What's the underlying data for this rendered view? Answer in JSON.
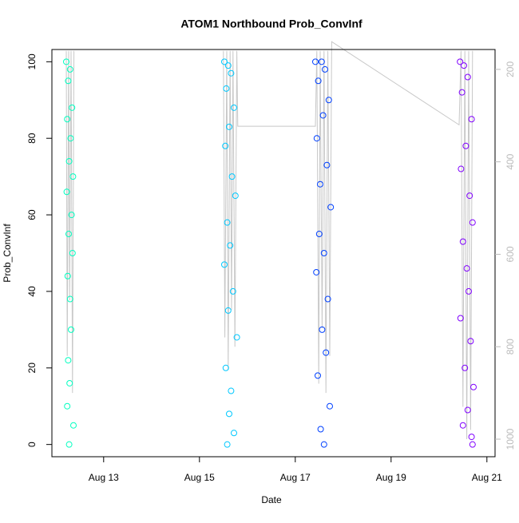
{
  "chart_data": {
    "type": "scatter",
    "title": "ATOM1 Northbound Prob_ConvInf",
    "x_label": "Date",
    "y_label": "Prob_ConvInf",
    "xlim": [
      11.92,
      21.17
    ],
    "xticks": [
      {
        "value": 13,
        "label": "Aug 13"
      },
      {
        "value": 15,
        "label": "Aug 15"
      },
      {
        "value": 17,
        "label": "Aug 17"
      },
      {
        "value": 19,
        "label": "Aug 19"
      },
      {
        "value": 21,
        "label": "Aug 21"
      }
    ],
    "ylim": [
      -3.2,
      103.2
    ],
    "yticks": [
      0,
      20,
      40,
      60,
      80,
      100
    ],
    "y2lim": [
      1038,
      157
    ],
    "y2ticks": [
      200,
      400,
      600,
      800,
      1000
    ],
    "series": [
      {
        "color": "#00ffc0",
        "x": [
          12.22,
          12.3,
          12.26,
          12.34,
          12.24,
          12.31,
          12.28,
          12.36,
          12.23,
          12.33,
          12.27,
          12.35,
          12.25,
          12.3,
          12.32,
          12.26,
          12.29,
          12.24,
          12.37,
          12.28
        ],
        "values": [
          100,
          98,
          95,
          88,
          85,
          80,
          74,
          70,
          66,
          60,
          55,
          50,
          44,
          38,
          30,
          22,
          16,
          10,
          5,
          0
        ]
      },
      {
        "color": "#00c8ff",
        "x": [
          15.52,
          15.6,
          15.66,
          15.56,
          15.72,
          15.62,
          15.54,
          15.68,
          15.75,
          15.58,
          15.64,
          15.52,
          15.7,
          15.6,
          15.78,
          15.55,
          15.66,
          15.62,
          15.72,
          15.58
        ],
        "values": [
          100,
          99,
          97,
          93,
          88,
          83,
          78,
          70,
          65,
          58,
          52,
          47,
          40,
          35,
          28,
          20,
          14,
          8,
          3,
          0
        ]
      },
      {
        "color": "#0040ff",
        "x": [
          17.42,
          17.55,
          17.62,
          17.48,
          17.7,
          17.58,
          17.45,
          17.66,
          17.52,
          17.74,
          17.5,
          17.6,
          17.44,
          17.68,
          17.56,
          17.64,
          17.47,
          17.72,
          17.53,
          17.6
        ],
        "values": [
          100,
          100,
          98,
          95,
          90,
          86,
          80,
          73,
          68,
          62,
          55,
          50,
          45,
          38,
          30,
          24,
          18,
          10,
          4,
          0
        ]
      },
      {
        "color": "#8000ff",
        "x": [
          20.44,
          20.52,
          20.6,
          20.48,
          20.68,
          20.56,
          20.46,
          20.64,
          20.7,
          20.5,
          20.58,
          20.62,
          20.45,
          20.66,
          20.54,
          20.72,
          20.6,
          20.5,
          20.68,
          20.7
        ],
        "values": [
          100,
          99,
          96,
          92,
          85,
          78,
          72,
          65,
          58,
          53,
          46,
          40,
          33,
          27,
          20,
          15,
          9,
          5,
          2,
          0
        ]
      },
      {
        "type": "line",
        "axis": "y2",
        "color": "#c8c8c8",
        "x": [
          12.22,
          12.24,
          12.27,
          12.29,
          12.32,
          12.35,
          12.38,
          12.4,
          15.5,
          15.53,
          15.57,
          15.6,
          15.64,
          15.67,
          15.7,
          15.74,
          15.78,
          15.8,
          17.42,
          17.45,
          17.49,
          17.52,
          17.56,
          17.6,
          17.64,
          17.68,
          17.72,
          17.76,
          20.42,
          20.46,
          20.5,
          20.54,
          20.58,
          20.62,
          20.66,
          20.7
        ],
        "values": [
          160,
          820,
          160,
          700,
          160,
          900,
          160,
          null,
          160,
          780,
          160,
          850,
          160,
          720,
          160,
          800,
          160,
          323,
          323,
          160,
          880,
          160,
          760,
          160,
          900,
          160,
          820,
          140,
          320,
          160,
          930,
          160,
          1000,
          160,
          980,
          160
        ]
      }
    ]
  }
}
